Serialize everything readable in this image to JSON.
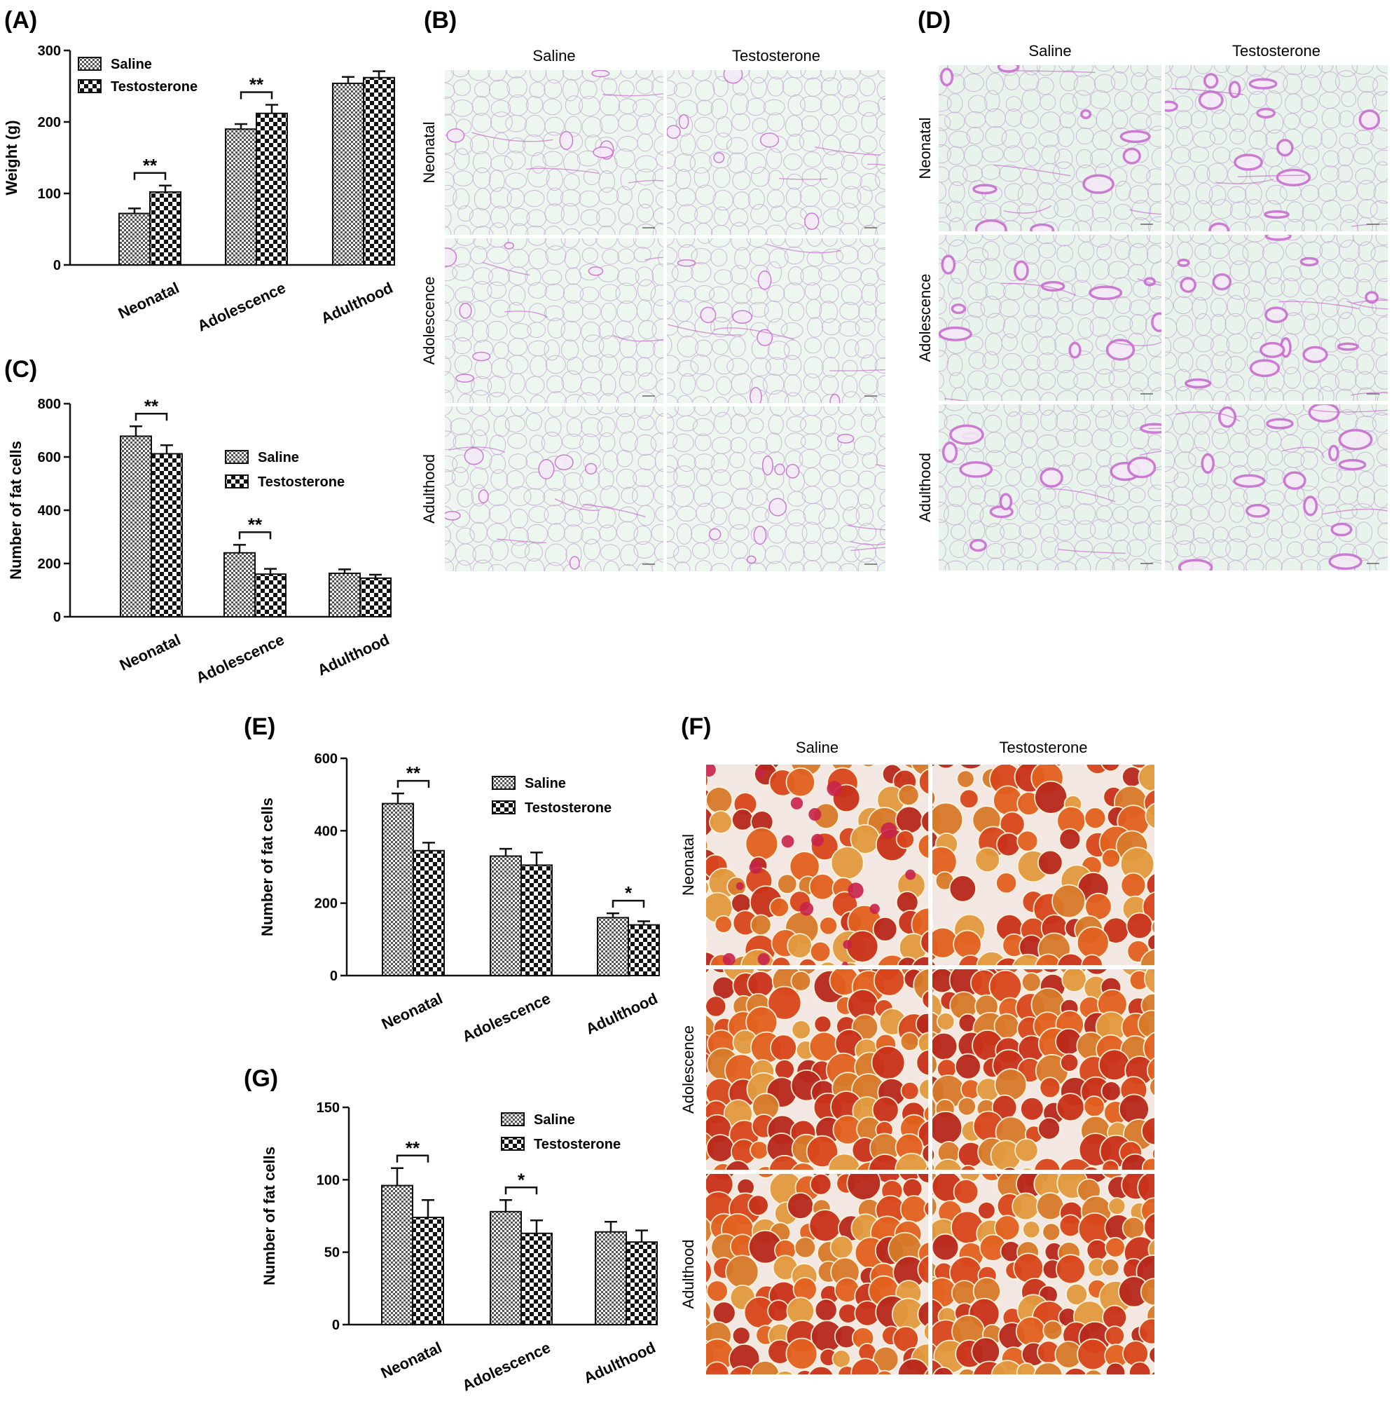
{
  "panel_labels": {
    "A": "(A)",
    "B": "(B)",
    "C": "(C)",
    "D": "(D)",
    "E": "(E)",
    "F": "(F)",
    "G": "(G)"
  },
  "legend": {
    "saline": "Saline",
    "testosterone": "Testosterone"
  },
  "image_grids": {
    "B": {
      "columns": [
        "Saline",
        "Testosterone"
      ],
      "rows": [
        "Neonatal",
        "Adolescence",
        "Adulthood"
      ],
      "stain": "H&E",
      "tone": "#eef6f0"
    },
    "D": {
      "columns": [
        "Saline",
        "Testosterone"
      ],
      "rows": [
        "Neonatal",
        "Adolescence",
        "Adulthood"
      ],
      "stain": "H&E",
      "tone": "#e8f3ec"
    },
    "F": {
      "columns": [
        "Saline",
        "Testosterone"
      ],
      "rows": [
        "Neonatal",
        "Adolescence",
        "Adulthood"
      ],
      "stain": "Oil Red O",
      "tone": "#d9541e"
    }
  },
  "colors": {
    "saline_fill": "#9a9a9a",
    "testosterone_fill": "#2a2a2a",
    "axis": "#111111",
    "he_stain": "#c86fcf",
    "oil_red": "#d9461c"
  },
  "chart_data": [
    {
      "id": "A",
      "type": "bar",
      "categories": [
        "Neonatal",
        "Adolescence",
        "Adulthood"
      ],
      "series": [
        {
          "name": "Saline",
          "values": [
            72,
            190,
            254
          ],
          "errors": [
            7,
            7,
            9
          ]
        },
        {
          "name": "Testosterone",
          "values": [
            102,
            212,
            262
          ],
          "errors": [
            9,
            12,
            9
          ]
        }
      ],
      "ylabel": "Weight (g)",
      "ylim": [
        0,
        300
      ],
      "yticks": [
        0,
        100,
        200,
        300
      ],
      "significance": [
        "**",
        "**",
        ""
      ],
      "legend_position": "top-left"
    },
    {
      "id": "C",
      "type": "bar",
      "categories": [
        "Neonatal",
        "Adolescence",
        "Adulthood"
      ],
      "series": [
        {
          "name": "Saline",
          "values": [
            678,
            240,
            163
          ],
          "errors": [
            37,
            30,
            15
          ]
        },
        {
          "name": "Testosterone",
          "values": [
            612,
            160,
            145
          ],
          "errors": [
            32,
            20,
            13
          ]
        }
      ],
      "ylabel": "Number of fat cells",
      "ylim": [
        0,
        800
      ],
      "yticks": [
        0,
        200,
        400,
        600,
        800
      ],
      "significance": [
        "**",
        "**",
        ""
      ],
      "legend_position": "right"
    },
    {
      "id": "E",
      "type": "bar",
      "categories": [
        "Neonatal",
        "Adolescence",
        "Adulthood"
      ],
      "series": [
        {
          "name": "Saline",
          "values": [
            475,
            330,
            160
          ],
          "errors": [
            28,
            20,
            12
          ]
        },
        {
          "name": "Testosterone",
          "values": [
            345,
            305,
            140
          ],
          "errors": [
            22,
            35,
            10
          ]
        }
      ],
      "ylabel": "Number of fat cells",
      "ylim": [
        0,
        600
      ],
      "yticks": [
        0,
        200,
        400,
        600
      ],
      "significance": [
        "**",
        "",
        "*"
      ],
      "legend_position": "top-right"
    },
    {
      "id": "G",
      "type": "bar",
      "categories": [
        "Neonatal",
        "Adolescence",
        "Adulthood"
      ],
      "series": [
        {
          "name": "Saline",
          "values": [
            96,
            78,
            64
          ],
          "errors": [
            12,
            8,
            7
          ]
        },
        {
          "name": "Testosterone",
          "values": [
            74,
            63,
            57
          ],
          "errors": [
            12,
            9,
            8
          ]
        }
      ],
      "ylabel": "Number of fat cells",
      "ylim": [
        0,
        150
      ],
      "yticks": [
        0,
        50,
        100,
        150
      ],
      "significance": [
        "**",
        "*",
        ""
      ],
      "legend_position": "top-right"
    }
  ]
}
